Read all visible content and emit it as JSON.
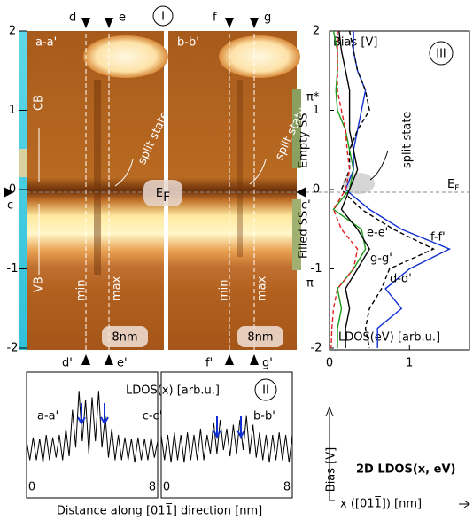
{
  "panel_I": {
    "title": "I",
    "ylim": [
      -2,
      2
    ],
    "yticks": [
      -2,
      -1,
      0,
      1,
      2
    ],
    "top_labels": [
      "d",
      "e",
      "f",
      "g"
    ],
    "bottom_labels": [
      "d'",
      "e'",
      "f'",
      "g'"
    ],
    "left_label": "a-a'",
    "right_label": "b-b'",
    "cb": "CB",
    "vb": "VB",
    "split_state": "split state",
    "ef": "E",
    "ef_sub": "F",
    "c": "c",
    "c_prime": "c'",
    "min": "min",
    "max": "max",
    "scale": "8nm"
  },
  "chart_data": [
    {
      "type": "line",
      "title": "II",
      "annotation": "LDOS(x) [arb.u.]",
      "label": "a-a'",
      "xlabel": "Distance along [011̅] direction [nm]",
      "x": [
        0,
        0.2,
        0.4,
        0.6,
        0.8,
        1,
        1.2,
        1.4,
        1.6,
        1.8,
        2,
        2.2,
        2.4,
        2.6,
        2.8,
        3,
        3.2,
        3.4,
        3.6,
        3.8,
        4,
        4.2,
        4.4,
        4.6,
        4.8,
        5,
        5.2,
        5.4,
        5.6,
        5.8,
        6,
        6.2,
        6.4,
        6.6,
        6.8,
        7,
        7.2,
        7.4,
        7.6,
        7.8,
        8
      ],
      "series": [
        {
          "color": "#000000",
          "values": [
            0.45,
            0.3,
            0.48,
            0.3,
            0.47,
            0.28,
            0.5,
            0.3,
            0.48,
            0.32,
            0.5,
            0.3,
            0.55,
            0.33,
            0.7,
            0.4,
            0.85,
            0.45,
            0.78,
            0.35,
            0.8,
            0.45,
            0.85,
            0.4,
            0.65,
            0.32,
            0.55,
            0.3,
            0.5,
            0.3,
            0.48,
            0.3,
            0.47,
            0.28,
            0.48,
            0.3,
            0.47,
            0.3,
            0.48,
            0.32,
            0.45
          ]
        }
      ],
      "xlim": [
        0,
        8
      ],
      "xticks": [
        0,
        8
      ],
      "ylim": [
        0,
        1
      ]
    },
    {
      "type": "line",
      "annotation": "c-c'",
      "label": "b-b'",
      "x": [
        0,
        0.2,
        0.4,
        0.6,
        0.8,
        1,
        1.2,
        1.4,
        1.6,
        1.8,
        2,
        2.2,
        2.4,
        2.6,
        2.8,
        3,
        3.2,
        3.4,
        3.6,
        3.8,
        4,
        4.2,
        4.4,
        4.6,
        4.8,
        5,
        5.2,
        5.4,
        5.6,
        5.8,
        6,
        6.2,
        6.4,
        6.6,
        6.8,
        7,
        7.2,
        7.4,
        7.6,
        7.8,
        8
      ],
      "series": [
        {
          "color": "#000000",
          "values": [
            0.5,
            0.3,
            0.5,
            0.28,
            0.52,
            0.3,
            0.5,
            0.28,
            0.52,
            0.3,
            0.5,
            0.3,
            0.55,
            0.3,
            0.5,
            0.35,
            0.6,
            0.35,
            0.62,
            0.38,
            0.55,
            0.33,
            0.58,
            0.35,
            0.62,
            0.38,
            0.65,
            0.35,
            0.58,
            0.32,
            0.52,
            0.3,
            0.5,
            0.28,
            0.5,
            0.3,
            0.52,
            0.3,
            0.5,
            0.28,
            0.5
          ]
        }
      ],
      "xlim": [
        0,
        8
      ],
      "xticks": [
        0,
        8
      ],
      "ylim": [
        0,
        1
      ]
    },
    {
      "type": "profile",
      "title": "III",
      "ylabel": "Bias [V]",
      "xlabel": "LDOS(eV) [arb.u.]",
      "y": [
        2,
        1.75,
        1.5,
        1.25,
        1,
        0.75,
        0.5,
        0.25,
        0,
        -0.25,
        -0.5,
        -0.75,
        -1,
        -1.25,
        -1.5,
        -1.75,
        -2
      ],
      "series": [
        {
          "name": "d-d'",
          "color": "#1030d0",
          "dash": false,
          "values": [
            0.3,
            0.3,
            0.35,
            0.45,
            0.4,
            0.35,
            0.3,
            0.3,
            0.2,
            0.5,
            0.9,
            1.5,
            1.0,
            0.7,
            0.9,
            0.6,
            0.6
          ]
        },
        {
          "name": "f-f'",
          "color": "#000000",
          "dash": true,
          "values": [
            0.25,
            0.3,
            0.35,
            0.45,
            0.5,
            0.35,
            0.25,
            0.25,
            0.15,
            0.4,
            0.8,
            1.3,
            0.75,
            0.65,
            0.5,
            0.45,
            0.5
          ]
        },
        {
          "name": "g-g'",
          "color": "#1a9a1a",
          "dash": false,
          "values": [
            0.05,
            0.1,
            0.1,
            0.08,
            0.1,
            0.2,
            0.25,
            0.3,
            0.25,
            0.05,
            0.4,
            0.45,
            0.3,
            0.1,
            0.15,
            0.1,
            0.1
          ]
        },
        {
          "name": "e-e'",
          "color": "#000000",
          "dash": false,
          "values": [
            0.12,
            0.15,
            0.2,
            0.25,
            0.25,
            0.25,
            0.3,
            0.35,
            0.25,
            0.15,
            0.35,
            0.5,
            0.35,
            0.2,
            0.25,
            0.2,
            0.2
          ]
        },
        {
          "color": "#e02020",
          "dash": true,
          "values": [
            0.1,
            0.1,
            0.1,
            0.1,
            0.15,
            0.2,
            0.22,
            0.25,
            0.2,
            0.05,
            0.15,
            0.35,
            0.3,
            0.1,
            0.05,
            0.03,
            0.02
          ]
        }
      ],
      "xlim": [
        0,
        1.75
      ],
      "xticks": [
        0,
        1
      ],
      "ylim": [
        -2,
        2
      ],
      "yticks": [
        -2,
        -1,
        0,
        1,
        2
      ],
      "annotations": {
        "pi_star": "π*",
        "empty": "Empty SS",
        "split": "split state",
        "ef": "E",
        "ef_sub": "F",
        "pi": "π",
        "filled": "Filled SS"
      }
    }
  ],
  "axes_note": {
    "y_label": "Bias [V]",
    "x_label": "x ([011̅]) [nm]",
    "title": "2D LDOS(x, eV)"
  }
}
